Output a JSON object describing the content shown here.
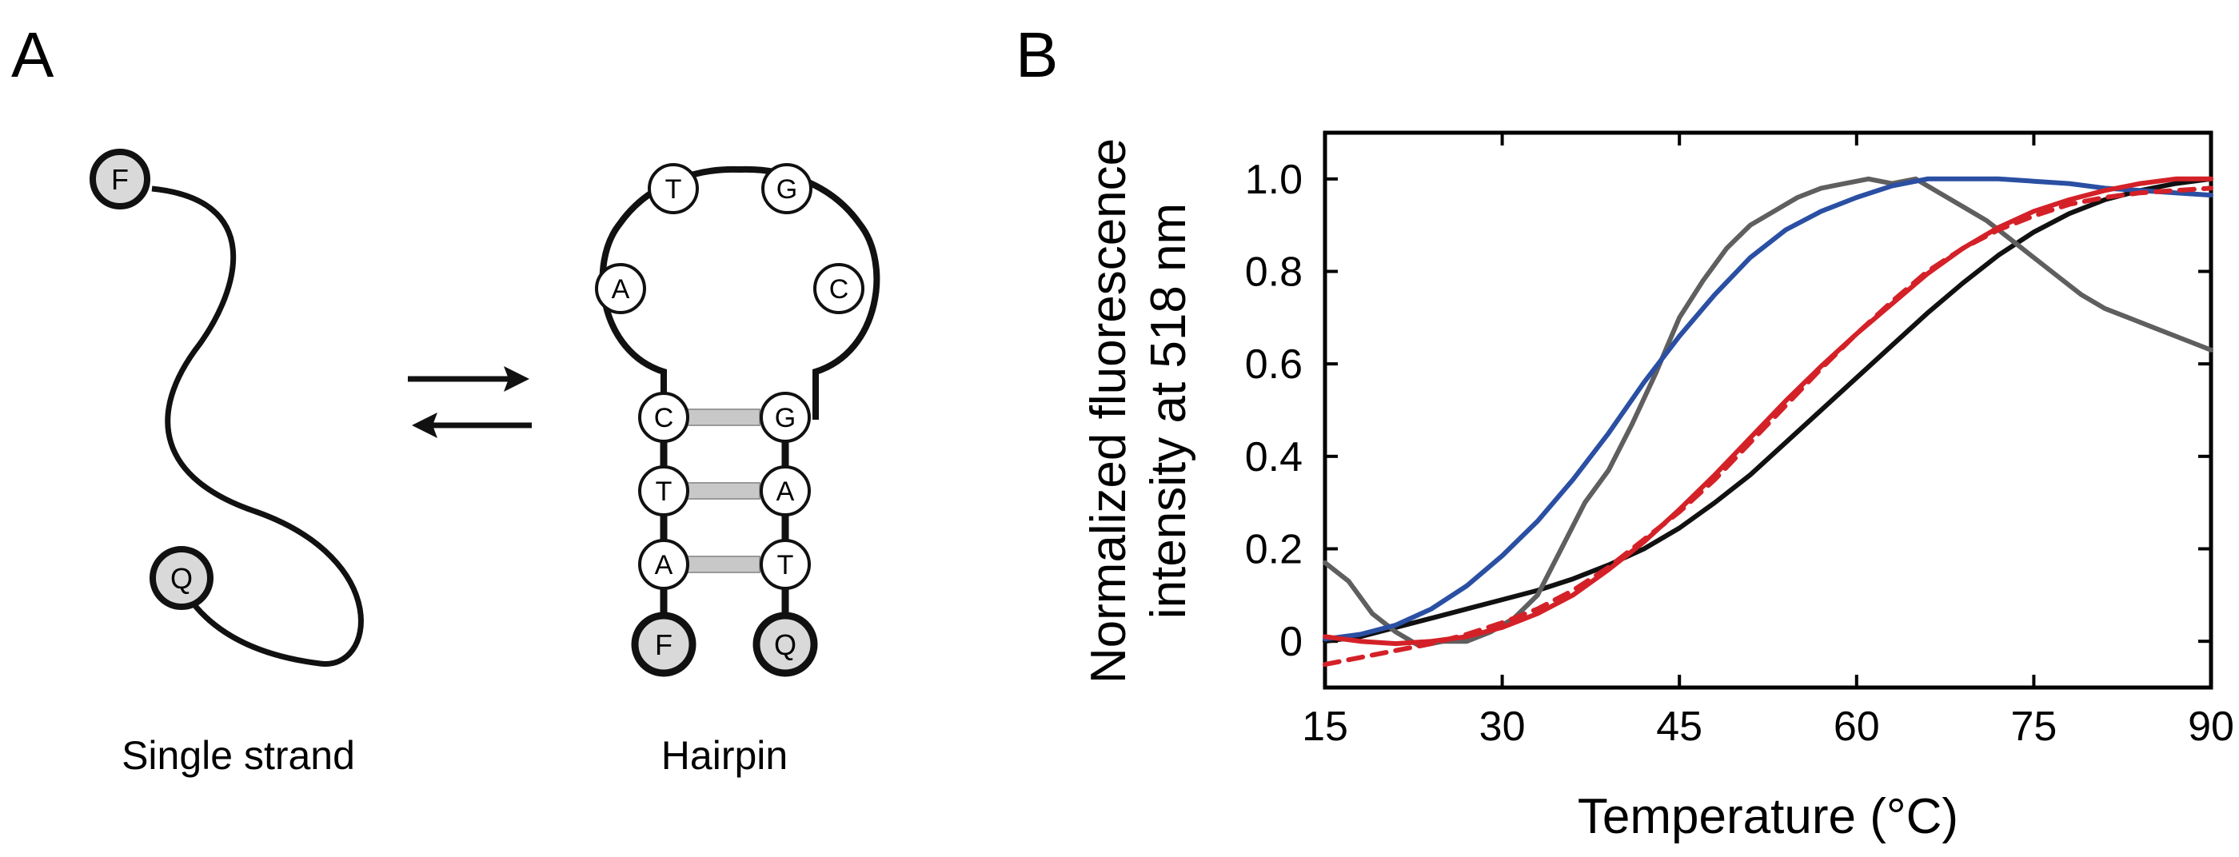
{
  "panels": {
    "a": {
      "label": "A",
      "single_strand": {
        "caption": "Single strand",
        "end_5": "F",
        "end_3": "Q"
      },
      "hairpin": {
        "caption": "Hairpin",
        "loop": [
          "T",
          "G",
          "A",
          "C"
        ],
        "stem_left": [
          "C",
          "T",
          "A"
        ],
        "stem_right": [
          "G",
          "A",
          "T"
        ],
        "end_left": "F",
        "end_right": "Q"
      },
      "equilibrium": "forward-and-reverse arrows"
    },
    "b": {
      "label": "B"
    }
  },
  "colors": {
    "black": "#111111",
    "gray": "#5f5f5f",
    "blue": "#2a4fa3",
    "red": "#d42128",
    "bead": "#d9d9d9",
    "bond": "#c8c8c8"
  },
  "chart_data": {
    "type": "line",
    "title": "",
    "xlabel": "Temperature (°C)",
    "ylabel": [
      "Normalized fluorescence",
      "intensity at 518 nm"
    ],
    "xlim": [
      15,
      90
    ],
    "ylim": [
      -0.1,
      1.1
    ],
    "xticks": [
      15,
      30,
      45,
      60,
      75,
      90
    ],
    "xtick_labels": [
      "15",
      "30",
      "45",
      "60",
      "75",
      "90"
    ],
    "yticks": [
      0,
      0.2,
      0.4,
      0.6,
      0.8,
      1.0
    ],
    "ytick_labels": [
      "0",
      "0.2",
      "0.4",
      "0.6",
      "0.8",
      "1.0"
    ],
    "grid": false,
    "legend": "none",
    "series": [
      {
        "name": "black",
        "color": "#111111",
        "style": "solid",
        "x": [
          15,
          18,
          21,
          24,
          27,
          30,
          33,
          36,
          39,
          42,
          45,
          48,
          51,
          54,
          57,
          60,
          63,
          66,
          69,
          72,
          75,
          78,
          81,
          84,
          87,
          90
        ],
        "y": [
          0.0,
          0.01,
          0.03,
          0.05,
          0.07,
          0.09,
          0.11,
          0.135,
          0.165,
          0.2,
          0.245,
          0.3,
          0.36,
          0.43,
          0.5,
          0.57,
          0.64,
          0.71,
          0.775,
          0.835,
          0.885,
          0.925,
          0.955,
          0.975,
          0.99,
          1.0
        ]
      },
      {
        "name": "gray",
        "color": "#5f5f5f",
        "style": "solid",
        "x": [
          15,
          17,
          19,
          21,
          23,
          25,
          27,
          29,
          31,
          33,
          35,
          37,
          39,
          41,
          43,
          45,
          47,
          49,
          51,
          53,
          55,
          57,
          59,
          61,
          63,
          65,
          67,
          69,
          71,
          73,
          75,
          77,
          79,
          81,
          83,
          85,
          87,
          89,
          90
        ],
        "y": [
          0.17,
          0.13,
          0.06,
          0.02,
          -0.01,
          0.0,
          0.0,
          0.02,
          0.05,
          0.1,
          0.2,
          0.3,
          0.37,
          0.47,
          0.58,
          0.7,
          0.78,
          0.85,
          0.9,
          0.93,
          0.96,
          0.98,
          0.99,
          1.0,
          0.99,
          1.0,
          0.97,
          0.94,
          0.91,
          0.87,
          0.83,
          0.79,
          0.75,
          0.72,
          0.7,
          0.68,
          0.66,
          0.64,
          0.63
        ]
      },
      {
        "name": "blue",
        "color": "#2a4fa3",
        "style": "solid",
        "x": [
          15,
          18,
          21,
          24,
          27,
          30,
          33,
          36,
          39,
          42,
          45,
          48,
          51,
          54,
          57,
          60,
          63,
          66,
          69,
          72,
          75,
          78,
          81,
          84,
          87,
          90
        ],
        "y": [
          0.005,
          0.015,
          0.035,
          0.07,
          0.12,
          0.185,
          0.26,
          0.35,
          0.45,
          0.56,
          0.66,
          0.75,
          0.83,
          0.89,
          0.93,
          0.96,
          0.985,
          1.0,
          1.0,
          1.0,
          0.995,
          0.99,
          0.98,
          0.975,
          0.97,
          0.965
        ]
      },
      {
        "name": "red",
        "color": "#d42128",
        "style": "solid",
        "x": [
          15,
          18,
          21,
          24,
          27,
          30,
          33,
          36,
          39,
          42,
          45,
          48,
          51,
          54,
          57,
          60,
          63,
          66,
          69,
          72,
          75,
          78,
          81,
          84,
          87,
          90
        ],
        "y": [
          0.01,
          0.0,
          -0.005,
          0.0,
          0.01,
          0.03,
          0.06,
          0.1,
          0.155,
          0.215,
          0.285,
          0.36,
          0.44,
          0.52,
          0.595,
          0.665,
          0.73,
          0.795,
          0.85,
          0.895,
          0.93,
          0.955,
          0.975,
          0.99,
          1.0,
          1.0
        ]
      },
      {
        "name": "red dashed",
        "color": "#d42128",
        "style": "dashed",
        "x": [
          15,
          18,
          21,
          24,
          27,
          30,
          33,
          36,
          39,
          42,
          45,
          48,
          51,
          54,
          57,
          60,
          63,
          66,
          69,
          72,
          75,
          78,
          81,
          84,
          87,
          90
        ],
        "y": [
          -0.05,
          -0.035,
          -0.02,
          -0.005,
          0.015,
          0.04,
          0.07,
          0.11,
          0.16,
          0.22,
          0.28,
          0.35,
          0.43,
          0.51,
          0.59,
          0.665,
          0.735,
          0.8,
          0.85,
          0.89,
          0.92,
          0.945,
          0.96,
          0.97,
          0.975,
          0.98
        ]
      }
    ]
  }
}
